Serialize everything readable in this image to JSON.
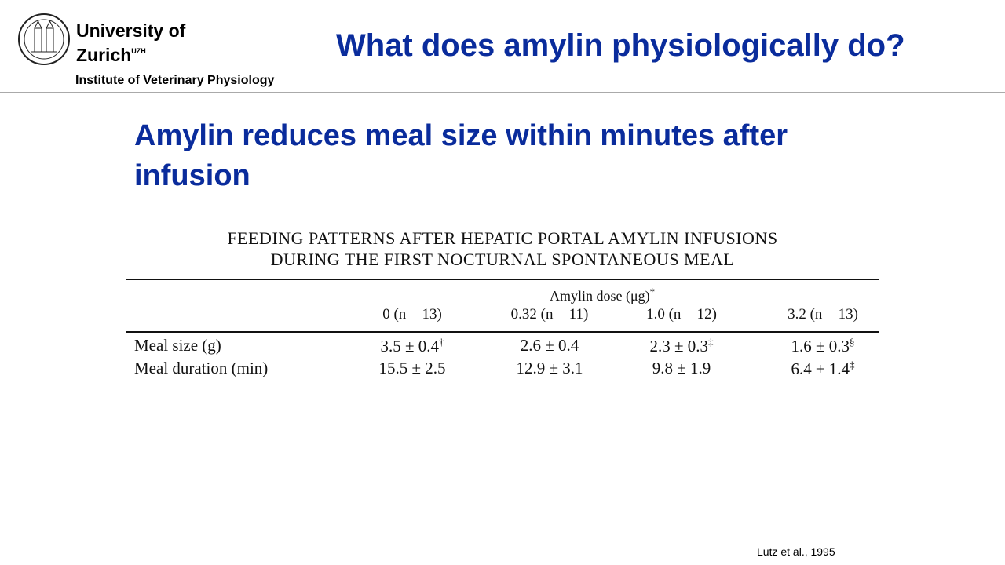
{
  "header": {
    "university_line1": "University of",
    "university_line2": "Zurich",
    "university_mark": "UZH",
    "institute": "Institute of Veterinary Physiology",
    "title": "What does amylin physiologically do?"
  },
  "subtitle": "Amylin reduces meal size within minutes after infusion",
  "table": {
    "title_lines": [
      "FEEDING PATTERNS AFTER HEPATIC PORTAL AMYLIN INFUSIONS",
      "DURING THE FIRST NOCTURNAL SPONTANEOUS MEAL"
    ],
    "group_header": {
      "text": "Amylin dose (μg)",
      "mark": "*"
    },
    "columns": [
      "0 (n = 13)",
      "0.32 (n = 11)",
      "1.0 (n = 12)",
      "3.2 (n = 13)"
    ],
    "rows": [
      {
        "label": "Meal size (g)",
        "cells": [
          {
            "text": "3.5 ± 0.4",
            "mark": "†"
          },
          {
            "text": "2.6 ± 0.4"
          },
          {
            "text": "2.3 ± 0.3",
            "mark": "‡"
          },
          {
            "text": "1.6 ± 0.3",
            "mark": "§"
          }
        ]
      },
      {
        "label": "Meal duration (min)",
        "cells": [
          {
            "text": "15.5 ± 2.5"
          },
          {
            "text": "12.9 ± 3.1"
          },
          {
            "text": "9.8 ± 1.9"
          },
          {
            "text": "6.4 ± 1.4",
            "mark": "‡"
          }
        ]
      }
    ]
  },
  "citation": "Lutz et al., 1995"
}
